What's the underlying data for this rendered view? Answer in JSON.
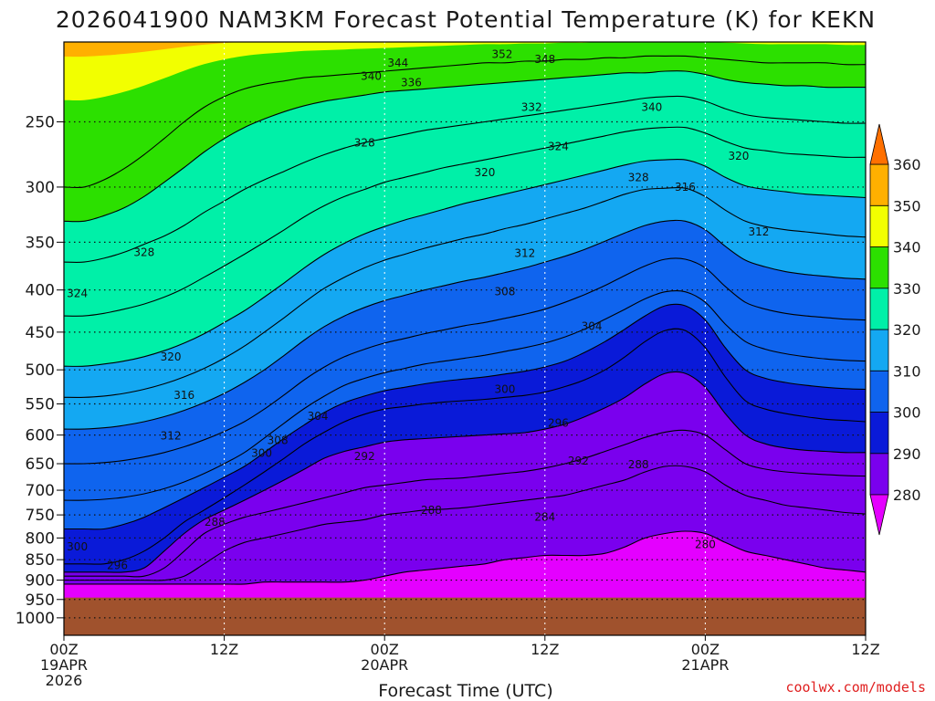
{
  "chart_data": {
    "type": "heatmap",
    "title": "2026041900 NAM3KM Forecast Potential Temperature (K) for KEKN",
    "xlabel": "Forecast Time (UTC)",
    "ylabel": "",
    "credit": "coolwx.com/models",
    "y_axis": {
      "scale": "log",
      "unit": "hPa",
      "range": [
        1050,
        200
      ],
      "ticks": [
        {
          "value": 250,
          "label": "250"
        },
        {
          "value": 300,
          "label": "300"
        },
        {
          "value": 350,
          "label": "350"
        },
        {
          "value": 400,
          "label": "400"
        },
        {
          "value": 450,
          "label": "450"
        },
        {
          "value": 500,
          "label": "500"
        },
        {
          "value": 550,
          "label": "550"
        },
        {
          "value": 600,
          "label": "600"
        },
        {
          "value": 650,
          "label": "650"
        },
        {
          "value": 700,
          "label": "700"
        },
        {
          "value": 750,
          "label": "750"
        },
        {
          "value": 800,
          "label": "800"
        },
        {
          "value": 850,
          "label": "850"
        },
        {
          "value": 900,
          "label": "900"
        },
        {
          "value": 950,
          "label": "950"
        },
        {
          "value": 1000,
          "label": "1000"
        }
      ]
    },
    "x_axis": {
      "unit": "forecast hour",
      "range": [
        0,
        60
      ],
      "ticks": [
        {
          "value": 0,
          "lines": [
            "00Z",
            "19APR",
            "2026"
          ]
        },
        {
          "value": 12,
          "lines": [
            "12Z"
          ]
        },
        {
          "value": 24,
          "lines": [
            "00Z",
            "20APR"
          ]
        },
        {
          "value": 36,
          "lines": [
            "12Z"
          ]
        },
        {
          "value": 48,
          "lines": [
            "00Z",
            "21APR"
          ]
        },
        {
          "value": 60,
          "lines": [
            "12Z"
          ]
        }
      ]
    },
    "grid": true,
    "ground_below_hPa": 945,
    "ground_color": "#a0522d",
    "colorbar": {
      "placement": "right",
      "bands": [
        {
          "from": 270,
          "to": 280,
          "color": "#e400ff"
        },
        {
          "from": 280,
          "to": 290,
          "color": "#7a00ee"
        },
        {
          "from": 290,
          "to": 300,
          "color": "#0a1ad8"
        },
        {
          "from": 300,
          "to": 310,
          "color": "#0f64ee"
        },
        {
          "from": 310,
          "to": 320,
          "color": "#14a8f2"
        },
        {
          "from": 320,
          "to": 330,
          "color": "#00f0a8"
        },
        {
          "from": 330,
          "to": 340,
          "color": "#2ce000"
        },
        {
          "from": 340,
          "to": 350,
          "color": "#f2ff00"
        },
        {
          "from": 350,
          "to": 360,
          "color": "#ffb000"
        },
        {
          "from": 360,
          "to": 370,
          "color": "#ff7000"
        }
      ],
      "labels": [
        "280",
        "290",
        "300",
        "310",
        "320",
        "330",
        "340",
        "350",
        "360"
      ]
    },
    "isentropes": [
      {
        "theta": 280,
        "hPa": [
          910,
          910,
          910,
          910,
          910,
          910,
          910,
          910,
          910,
          910,
          905,
          905,
          905,
          905,
          905,
          900,
          890,
          880,
          875,
          870,
          865,
          860,
          850,
          845,
          840,
          840,
          840,
          835,
          820,
          800,
          790,
          785,
          790,
          810,
          830,
          840,
          850,
          860,
          870,
          875,
          880
        ]
      },
      {
        "theta": 284,
        "hPa": [
          900,
          900,
          900,
          900,
          900,
          900,
          890,
          860,
          830,
          810,
          800,
          790,
          780,
          770,
          765,
          760,
          750,
          745,
          740,
          738,
          735,
          730,
          725,
          720,
          715,
          710,
          700,
          690,
          680,
          665,
          655,
          655,
          665,
          690,
          710,
          720,
          730,
          735,
          740,
          745,
          748
        ]
      },
      {
        "theta": 288,
        "hPa": [
          890,
          890,
          890,
          890,
          890,
          870,
          830,
          790,
          770,
          755,
          745,
          735,
          725,
          715,
          705,
          695,
          690,
          685,
          680,
          678,
          676,
          672,
          668,
          664,
          658,
          650,
          640,
          628,
          616,
          604,
          595,
          592,
          600,
          625,
          650,
          660,
          665,
          668,
          670,
          672,
          673
        ]
      },
      {
        "theta": 292,
        "hPa": [
          880,
          880,
          880,
          880,
          870,
          830,
          790,
          760,
          740,
          720,
          700,
          680,
          660,
          640,
          628,
          620,
          612,
          608,
          606,
          604,
          602,
          600,
          598,
          596,
          590,
          582,
          570,
          556,
          540,
          520,
          505,
          505,
          525,
          565,
          600,
          615,
          622,
          626,
          628,
          630,
          630
        ]
      },
      {
        "theta": 296,
        "hPa": [
          860,
          860,
          860,
          850,
          830,
          800,
          765,
          740,
          715,
          690,
          665,
          640,
          615,
          595,
          578,
          566,
          558,
          554,
          550,
          547,
          545,
          543,
          540,
          537,
          532,
          524,
          514,
          500,
          482,
          462,
          448,
          448,
          470,
          510,
          545,
          558,
          565,
          570,
          574,
          576,
          578
        ]
      },
      {
        "theta": 300,
        "hPa": [
          780,
          780,
          780,
          770,
          755,
          735,
          715,
          695,
          675,
          655,
          630,
          605,
          583,
          563,
          548,
          538,
          530,
          525,
          520,
          516,
          513,
          510,
          506,
          502,
          496,
          488,
          476,
          462,
          446,
          430,
          418,
          418,
          435,
          470,
          500,
          512,
          518,
          522,
          525,
          527,
          528
        ]
      },
      {
        "theta": 304,
        "hPa": [
          720,
          720,
          718,
          714,
          707,
          697,
          684,
          668,
          650,
          630,
          605,
          580,
          557,
          538,
          522,
          512,
          504,
          498,
          492,
          488,
          484,
          480,
          475,
          470,
          464,
          456,
          446,
          434,
          422,
          410,
          402,
          402,
          414,
          440,
          462,
          472,
          478,
          482,
          485,
          487,
          488
        ]
      },
      {
        "theta": 308,
        "hPa": [
          650,
          650,
          648,
          644,
          638,
          630,
          620,
          608,
          594,
          578,
          558,
          536,
          514,
          496,
          482,
          472,
          464,
          458,
          452,
          447,
          442,
          438,
          433,
          428,
          422,
          414,
          405,
          395,
          384,
          374,
          367,
          367,
          376,
          396,
          414,
          422,
          427,
          430,
          432,
          434,
          435
        ]
      },
      {
        "theta": 312,
        "hPa": [
          590,
          590,
          588,
          584,
          578,
          570,
          560,
          548,
          534,
          518,
          500,
          480,
          460,
          443,
          430,
          420,
          412,
          406,
          400,
          395,
          390,
          386,
          381,
          376,
          370,
          364,
          357,
          349,
          341,
          334,
          330,
          330,
          338,
          354,
          368,
          375,
          380,
          383,
          385,
          387,
          388
        ]
      },
      {
        "theta": 316,
        "hPa": [
          540,
          540,
          538,
          534,
          528,
          520,
          510,
          498,
          484,
          468,
          450,
          432,
          414,
          398,
          386,
          376,
          368,
          362,
          356,
          351,
          346,
          342,
          337,
          333,
          328,
          323,
          318,
          312,
          306,
          302,
          301,
          301,
          308,
          320,
          330,
          335,
          338,
          340,
          342,
          344,
          345
        ]
      },
      {
        "theta": 320,
        "hPa": [
          495,
          495,
          492,
          488,
          482,
          474,
          464,
          452,
          438,
          424,
          408,
          392,
          376,
          362,
          351,
          342,
          335,
          329,
          324,
          319,
          314,
          310,
          306,
          302,
          298,
          294,
          290,
          286,
          282,
          279,
          278,
          278,
          283,
          292,
          299,
          302,
          304,
          306,
          307,
          308,
          309
        ]
      },
      {
        "theta": 324,
        "hPa": [
          430,
          430,
          427,
          422,
          416,
          408,
          398,
          386,
          374,
          362,
          350,
          338,
          326,
          316,
          308,
          302,
          296,
          292,
          288,
          284,
          281,
          278,
          275,
          272,
          269,
          266,
          263,
          260,
          257,
          255,
          254,
          254,
          258,
          264,
          269,
          271,
          273,
          274,
          275,
          276,
          276
        ]
      },
      {
        "theta": 328,
        "hPa": [
          370,
          370,
          366,
          360,
          352,
          344,
          334,
          322,
          312,
          302,
          294,
          287,
          280,
          274,
          269,
          265,
          262,
          259,
          256,
          254,
          252,
          250,
          248,
          246,
          244,
          242,
          240,
          238,
          236,
          234,
          233,
          233,
          236,
          241,
          245,
          247,
          248,
          249,
          250,
          251,
          251
        ]
      },
      {
        "theta": 332,
        "hPa": [
          330,
          330,
          325,
          318,
          308,
          296,
          284,
          272,
          262,
          254,
          248,
          243,
          239,
          236,
          234,
          232,
          230,
          229,
          228,
          227,
          226,
          225,
          224,
          223,
          222,
          221,
          220,
          219,
          218,
          218,
          217,
          217,
          219,
          222,
          224,
          225,
          226,
          226,
          227,
          227,
          227
        ]
      },
      {
        "theta": 336,
        "hPa": [
          300,
          300,
          294,
          285,
          274,
          262,
          250,
          240,
          233,
          228,
          225,
          223,
          221,
          220,
          219,
          218,
          217,
          216,
          215,
          214,
          213,
          212,
          212,
          211,
          211,
          210,
          210,
          209,
          209,
          208,
          208,
          208,
          209,
          210,
          211,
          212,
          212,
          212,
          212,
          213,
          213
        ]
      }
    ],
    "contour_labels": [
      {
        "theta": "352",
        "hour": 32.8,
        "hPa": 207
      },
      {
        "theta": "348",
        "hour": 36.0,
        "hPa": 210
      },
      {
        "theta": "344",
        "hour": 25.0,
        "hPa": 212
      },
      {
        "theta": "340",
        "hour": 23.0,
        "hPa": 220
      },
      {
        "theta": "336",
        "hour": 26.0,
        "hPa": 224
      },
      {
        "theta": "332",
        "hour": 35.0,
        "hPa": 240
      },
      {
        "theta": "340",
        "hour": 44.0,
        "hPa": 240
      },
      {
        "theta": "328",
        "hour": 22.5,
        "hPa": 265
      },
      {
        "theta": "324",
        "hour": 37.0,
        "hPa": 268
      },
      {
        "theta": "320",
        "hour": 31.5,
        "hPa": 288
      },
      {
        "theta": "328",
        "hour": 43.0,
        "hPa": 292
      },
      {
        "theta": "320",
        "hour": 50.5,
        "hPa": 275
      },
      {
        "theta": "316",
        "hour": 46.5,
        "hPa": 300
      },
      {
        "theta": "312",
        "hour": 52.0,
        "hPa": 340
      },
      {
        "theta": "312",
        "hour": 34.5,
        "hPa": 361
      },
      {
        "theta": "328",
        "hour": 6.0,
        "hPa": 360
      },
      {
        "theta": "324",
        "hour": 1.0,
        "hPa": 404
      },
      {
        "theta": "308",
        "hour": 33.0,
        "hPa": 402
      },
      {
        "theta": "304",
        "hour": 39.5,
        "hPa": 443
      },
      {
        "theta": "320",
        "hour": 8.0,
        "hPa": 482
      },
      {
        "theta": "300",
        "hour": 33.0,
        "hPa": 528
      },
      {
        "theta": "316",
        "hour": 9.0,
        "hPa": 537
      },
      {
        "theta": "304",
        "hour": 19.0,
        "hPa": 569
      },
      {
        "theta": "296",
        "hour": 37.0,
        "hPa": 580
      },
      {
        "theta": "312",
        "hour": 8.0,
        "hPa": 601
      },
      {
        "theta": "308",
        "hour": 16.0,
        "hPa": 609
      },
      {
        "theta": "300",
        "hour": 14.8,
        "hPa": 631
      },
      {
        "theta": "292",
        "hour": 22.5,
        "hPa": 637
      },
      {
        "theta": "292",
        "hour": 38.5,
        "hPa": 645
      },
      {
        "theta": "288",
        "hour": 43.0,
        "hPa": 652
      },
      {
        "theta": "288",
        "hour": 27.5,
        "hPa": 740
      },
      {
        "theta": "284",
        "hour": 36.0,
        "hPa": 755
      },
      {
        "theta": "288",
        "hour": 11.3,
        "hPa": 765
      },
      {
        "theta": "280",
        "hour": 48.0,
        "hPa": 815
      },
      {
        "theta": "300",
        "hour": 1.0,
        "hPa": 820
      },
      {
        "theta": "296",
        "hour": 4.0,
        "hPa": 864
      }
    ]
  }
}
